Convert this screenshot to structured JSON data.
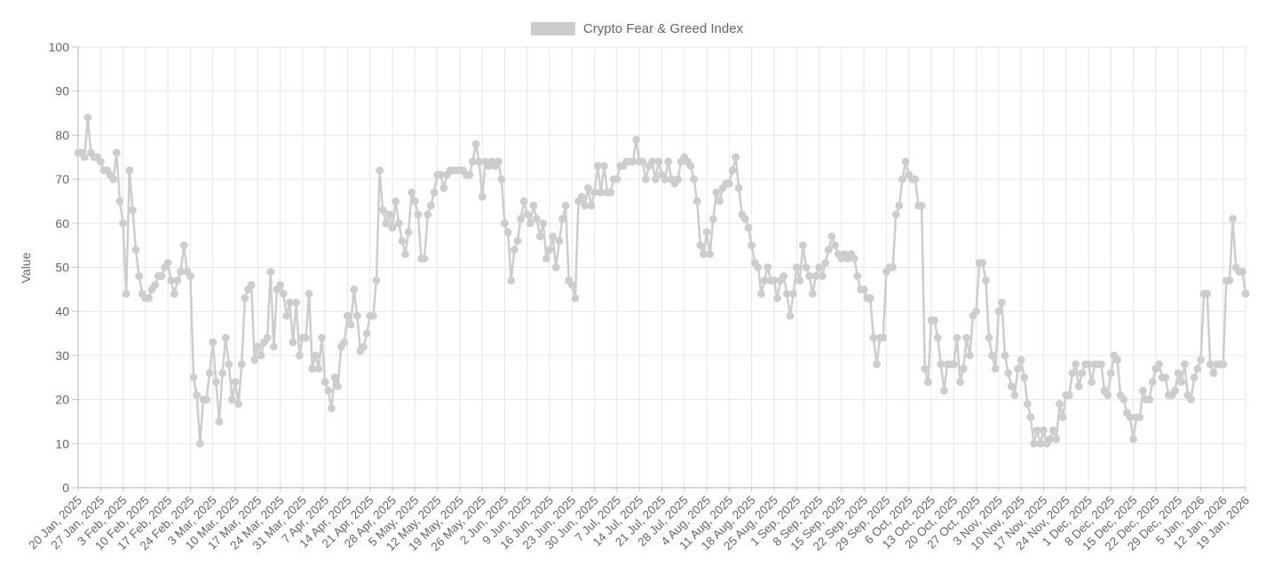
{
  "legend": {
    "label": "Crypto Fear & Greed Index",
    "swatch_color": "#cccccc"
  },
  "colors": {
    "series": "#cdcdcd",
    "grid": "#e6e6e6",
    "axis": "#b3b3b3",
    "tick": "#c9c9c9",
    "text": "#666666",
    "background": "#ffffff"
  },
  "chart_data": {
    "type": "line",
    "title": "Crypto Fear & Greed Index",
    "xlabel": "",
    "ylabel": "Value",
    "ylim": [
      0,
      100
    ],
    "y_ticks": [
      0,
      10,
      20,
      30,
      40,
      50,
      60,
      70,
      80,
      90,
      100
    ],
    "grid": true,
    "legend_position": "top-center",
    "marker": "circle",
    "x_start": "20 Jan, 2025",
    "x_end": "19 Jan, 2026",
    "x_frequency": "daily",
    "x_tick_labels": [
      "20 Jan, 2025",
      "27 Jan, 2025",
      "3 Feb, 2025",
      "10 Feb, 2025",
      "17 Feb, 2025",
      "24 Feb, 2025",
      "3 Mar, 2025",
      "10 Mar, 2025",
      "17 Mar, 2025",
      "24 Mar, 2025",
      "31 Mar, 2025",
      "7 Apr, 2025",
      "14 Apr, 2025",
      "21 Apr, 2025",
      "28 Apr, 2025",
      "5 May, 2025",
      "12 May, 2025",
      "19 May, 2025",
      "26 May, 2025",
      "2 Jun, 2025",
      "9 Jun, 2025",
      "16 Jun, 2025",
      "23 Jun, 2025",
      "30 Jun, 2025",
      "7 Jul, 2025",
      "14 Jul, 2025",
      "21 Jul, 2025",
      "28 Jul, 2025",
      "4 Aug, 2025",
      "11 Aug, 2025",
      "18 Aug, 2025",
      "25 Aug, 2025",
      "1 Sep, 2025",
      "8 Sep, 2025",
      "15 Sep, 2025",
      "22 Sep, 2025",
      "29 Sep, 2025",
      "6 Oct, 2025",
      "13 Oct, 2025",
      "20 Oct, 2025",
      "27 Oct, 2025",
      "3 Nov, 2025",
      "10 Nov, 2025",
      "17 Nov, 2025",
      "24 Nov, 2025",
      "1 Dec, 2025",
      "8 Dec, 2025",
      "15 Dec, 2025",
      "22 Dec, 2025",
      "29 Dec, 2025",
      "5 Jan, 2026",
      "12 Jan, 2026",
      "19 Jan, 2026"
    ],
    "series": [
      {
        "name": "Crypto Fear & Greed Index",
        "color": "#cdcdcd",
        "values": [
          76,
          76,
          75,
          84,
          76,
          75,
          75,
          74,
          72,
          72,
          71,
          70,
          76,
          65,
          60,
          44,
          72,
          63,
          54,
          48,
          44,
          43,
          43,
          45,
          46,
          48,
          48,
          50,
          51,
          47,
          44,
          47,
          49,
          55,
          49,
          48,
          25,
          21,
          10,
          20,
          20,
          26,
          33,
          24,
          15,
          26,
          34,
          28,
          20,
          24,
          19,
          28,
          43,
          45,
          46,
          29,
          32,
          30,
          33,
          34,
          49,
          32,
          45,
          46,
          44,
          39,
          42,
          33,
          42,
          30,
          34,
          34,
          44,
          27,
          30,
          27,
          34,
          24,
          22,
          18,
          25,
          23,
          32,
          33,
          39,
          37,
          45,
          39,
          31,
          32,
          35,
          39,
          39,
          47,
          72,
          63,
          60,
          62,
          59,
          65,
          60,
          56,
          53,
          58,
          67,
          65,
          62,
          52,
          52,
          62,
          64,
          67,
          71,
          71,
          68,
          71,
          72,
          72,
          72,
          72,
          72,
          71,
          71,
          74,
          78,
          74,
          66,
          74,
          73,
          74,
          73,
          74,
          70,
          60,
          58,
          47,
          54,
          56,
          61,
          65,
          62,
          60,
          64,
          61,
          57,
          60,
          52,
          54,
          57,
          50,
          56,
          61,
          64,
          47,
          46,
          43,
          65,
          66,
          64,
          68,
          64,
          67,
          73,
          67,
          73,
          67,
          67,
          70,
          70,
          73,
          73,
          74,
          74,
          74,
          79,
          74,
          74,
          70,
          73,
          74,
          70,
          74,
          71,
          70,
          74,
          70,
          69,
          70,
          74,
          75,
          74,
          73,
          70,
          65,
          55,
          53,
          58,
          53,
          61,
          67,
          65,
          68,
          69,
          69,
          72,
          75,
          68,
          62,
          61,
          59,
          55,
          51,
          50,
          44,
          47,
          50,
          47,
          47,
          43,
          47,
          48,
          44,
          39,
          44,
          50,
          47,
          55,
          50,
          48,
          44,
          48,
          50,
          48,
          51,
          54,
          57,
          55,
          53,
          52,
          53,
          52,
          53,
          52,
          48,
          45,
          45,
          43,
          43,
          34,
          28,
          34,
          34,
          49,
          50,
          50,
          62,
          64,
          70,
          74,
          71,
          70,
          70,
          64,
          64,
          27,
          24,
          38,
          38,
          34,
          28,
          22,
          28,
          28,
          28,
          34,
          24,
          27,
          34,
          30,
          39,
          40,
          51,
          51,
          47,
          34,
          30,
          27,
          40,
          42,
          30,
          26,
          23,
          21,
          27,
          29,
          25,
          19,
          16,
          10,
          13,
          10,
          13,
          10,
          11,
          13,
          11,
          19,
          16,
          21,
          21,
          26,
          28,
          23,
          26,
          28,
          28,
          24,
          28,
          28,
          28,
          22,
          21,
          26,
          30,
          29,
          21,
          20,
          17,
          16,
          11,
          16,
          16,
          22,
          20,
          20,
          24,
          27,
          28,
          25,
          25,
          21,
          21,
          22,
          26,
          24,
          28,
          21,
          20,
          25,
          27,
          29,
          44,
          44,
          28,
          26,
          28,
          28,
          28,
          47,
          47,
          61,
          50,
          49,
          49,
          44
        ]
      }
    ]
  }
}
